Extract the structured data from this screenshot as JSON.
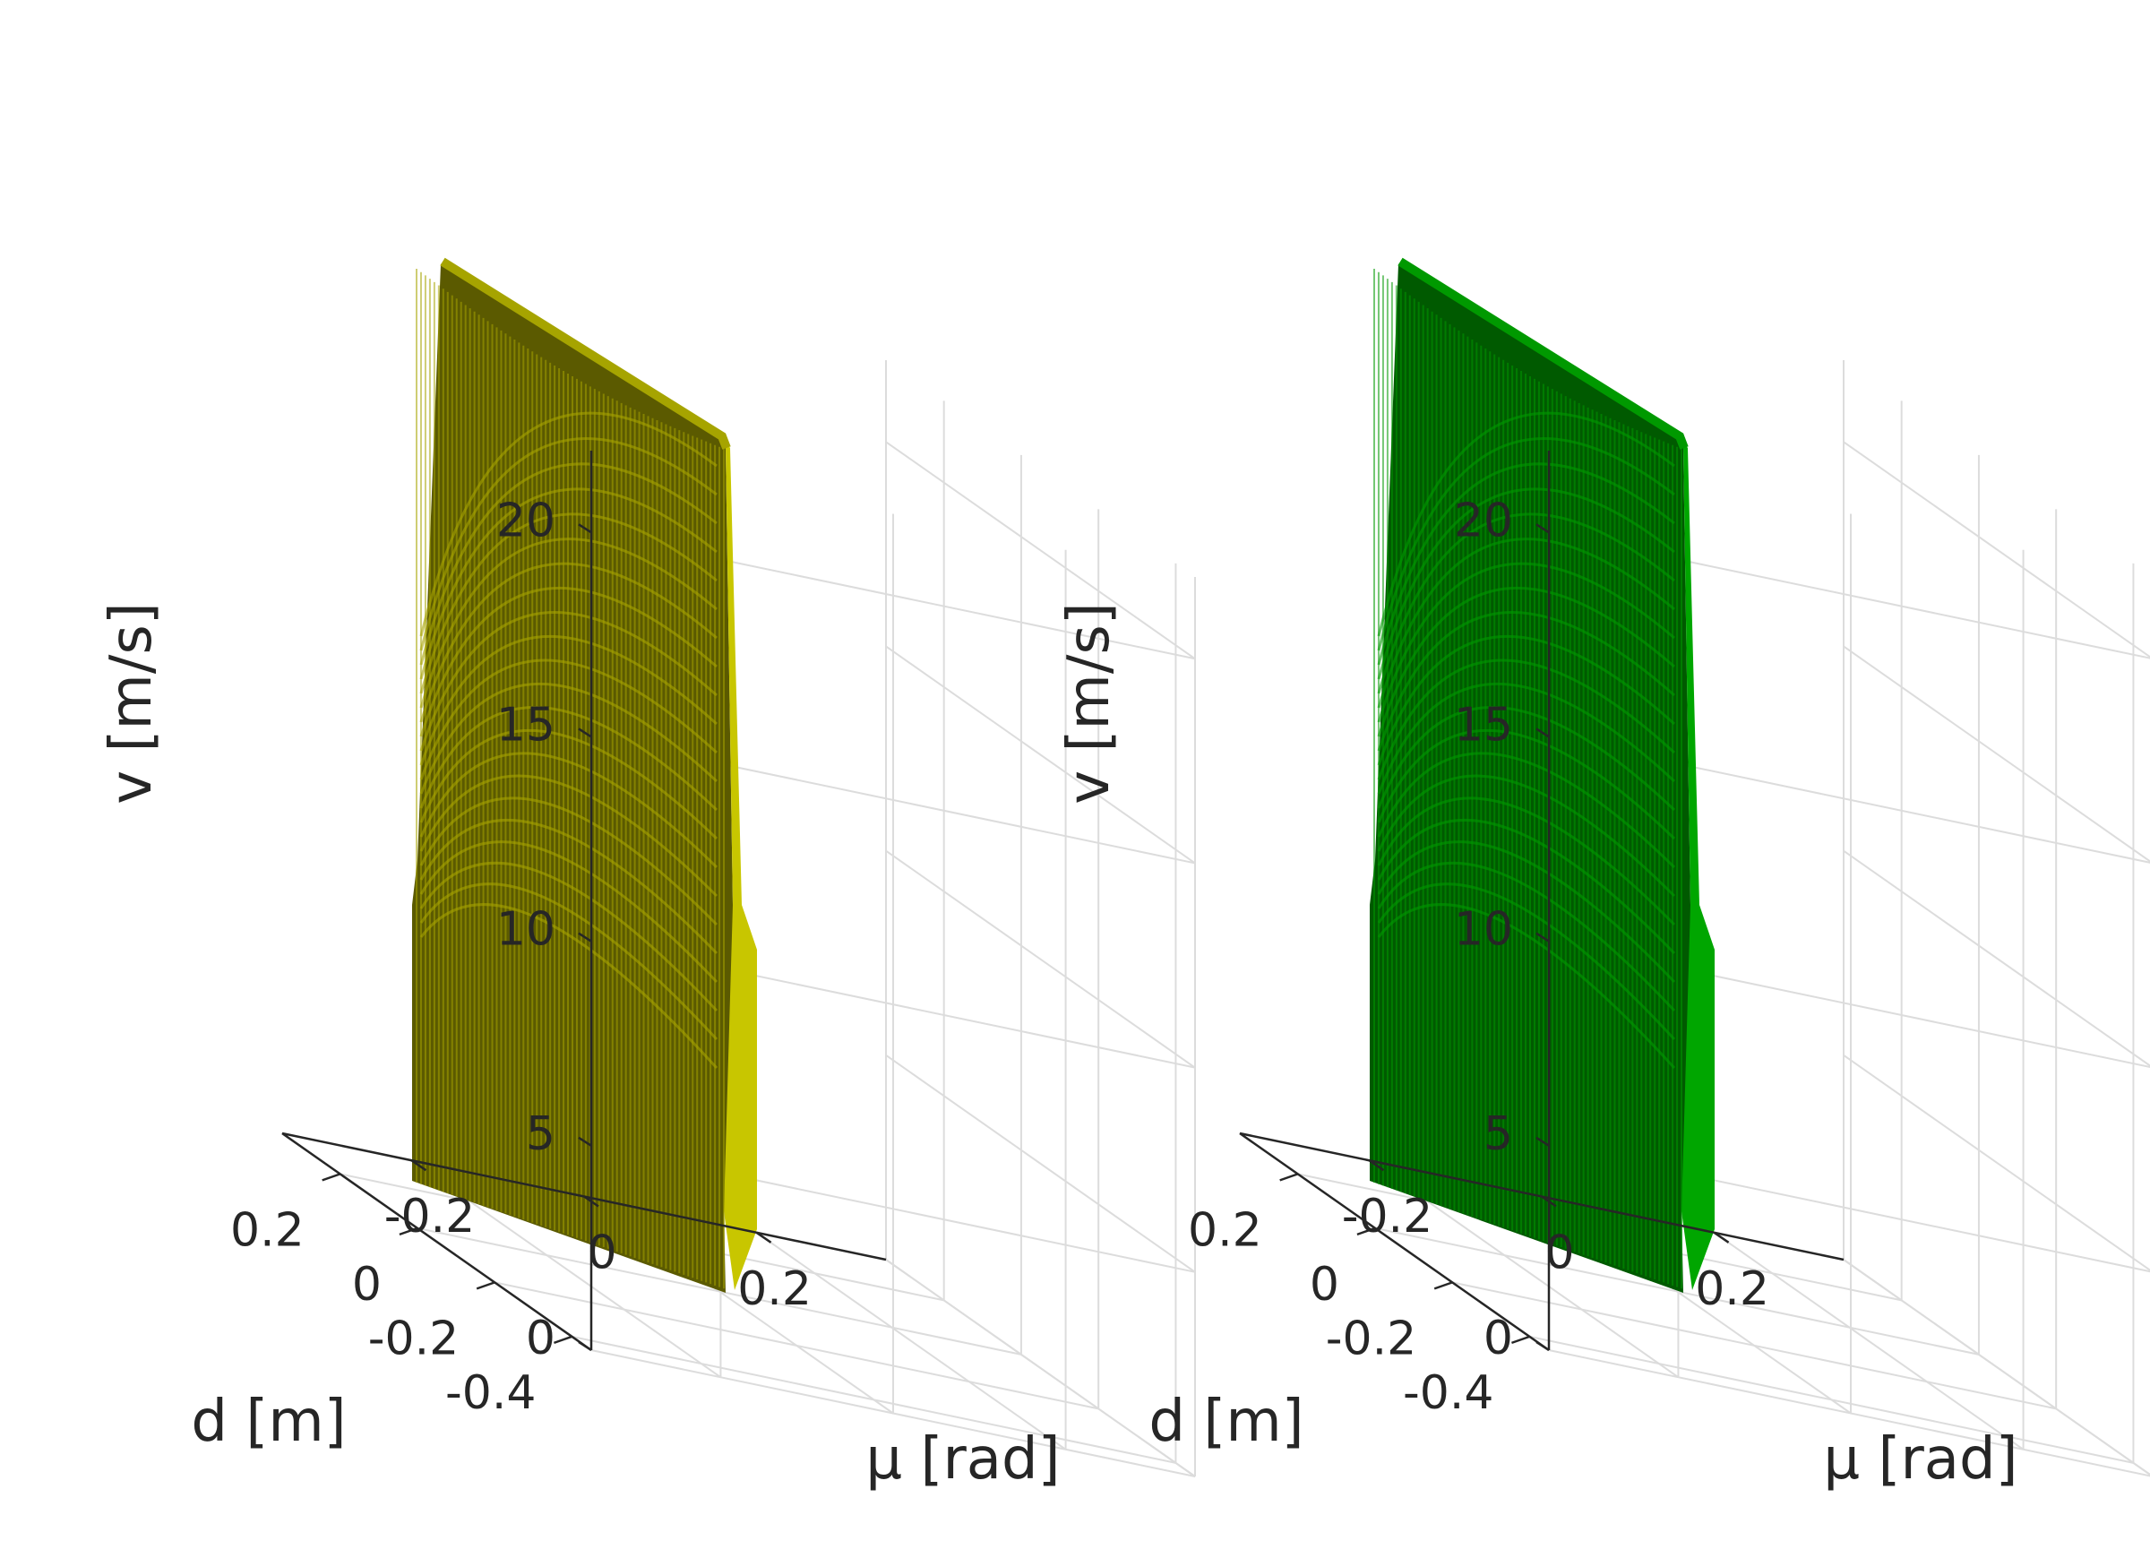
{
  "chart_data": [
    {
      "type": "surface3d",
      "series": [
        {
          "color": "#a6a400",
          "shade_dark": "#5b5a00",
          "shade_side": "#c8c600"
        }
      ],
      "xlabel": "d [m]",
      "ylabel": "μ [rad]",
      "zlabel": "v [m/s]",
      "xlim": [
        -0.45,
        0.35
      ],
      "ylim": [
        -0.35,
        0.35
      ],
      "zlim": [
        0,
        22
      ],
      "x_ticks": [
        {
          "value": 0.2,
          "label": "0.2"
        },
        {
          "value": 0,
          "label": "0"
        },
        {
          "value": -0.2,
          "label": "-0.2"
        },
        {
          "value": -0.4,
          "label": "-0.4"
        }
      ],
      "y_ticks": [
        {
          "value": -0.2,
          "label": "-0.2"
        },
        {
          "value": 0,
          "label": "0"
        },
        {
          "value": 0.2,
          "label": "0.2"
        }
      ],
      "z_ticks": [
        {
          "value": 0,
          "label": "0"
        },
        {
          "value": 5,
          "label": "5"
        },
        {
          "value": 10,
          "label": "10"
        },
        {
          "value": 15,
          "label": "15"
        },
        {
          "value": 20,
          "label": "20"
        }
      ],
      "grid": true
    },
    {
      "type": "surface3d",
      "series": [
        {
          "color": "#009900",
          "shade_dark": "#005a00",
          "shade_side": "#00a600"
        }
      ],
      "xlabel": "d [m]",
      "ylabel": "μ [rad]",
      "zlabel": "v [m/s]",
      "xlim": [
        -0.45,
        0.35
      ],
      "ylim": [
        -0.35,
        0.35
      ],
      "zlim": [
        0,
        22
      ],
      "x_ticks": [
        {
          "value": 0.2,
          "label": "0.2"
        },
        {
          "value": 0,
          "label": "0"
        },
        {
          "value": -0.2,
          "label": "-0.2"
        },
        {
          "value": -0.4,
          "label": "-0.4"
        }
      ],
      "y_ticks": [
        {
          "value": -0.2,
          "label": "-0.2"
        },
        {
          "value": 0,
          "label": "0"
        },
        {
          "value": 0.2,
          "label": "0.2"
        }
      ],
      "z_ticks": [
        {
          "value": 0,
          "label": "0"
        },
        {
          "value": 5,
          "label": "5"
        },
        {
          "value": 10,
          "label": "10"
        },
        {
          "value": 15,
          "label": "15"
        },
        {
          "value": 20,
          "label": "20"
        }
      ],
      "grid": true
    }
  ]
}
